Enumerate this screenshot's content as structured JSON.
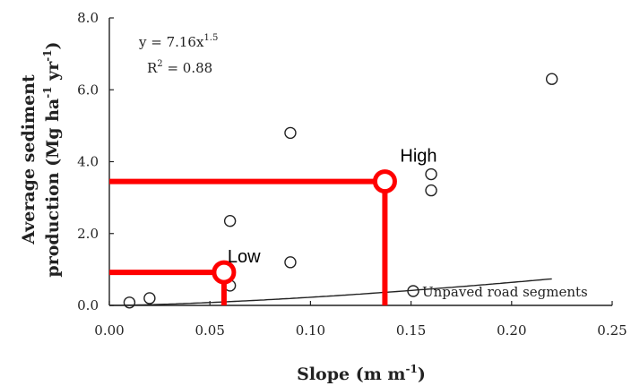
{
  "chart_data": {
    "type": "scatter",
    "title": "",
    "xlabel": "Slope (m m",
    "xlabel_sup": "-1",
    "xlabel_end": ")",
    "ylabel_line1": "Average sediment",
    "ylabel_line2_parts": [
      "production (Mg ha",
      "-1",
      " yr",
      "-1",
      ")"
    ],
    "xlim": [
      0,
      0.25
    ],
    "ylim": [
      0,
      8.0
    ],
    "x_ticks": [
      0.0,
      0.05,
      0.1,
      0.15,
      0.2,
      0.25
    ],
    "x_tick_labels": [
      "0.00",
      "0.05",
      "0.10",
      "0.15",
      "0.20",
      "0.25"
    ],
    "y_ticks": [
      0,
      2,
      4,
      6,
      8
    ],
    "y_tick_labels": [
      "0.0",
      "2.0",
      "4.0",
      "6.0",
      "8.0"
    ],
    "series": [
      {
        "name": "Unpaved road segments",
        "marker": "open-circle",
        "points": [
          {
            "x": 0.01,
            "y": 0.08
          },
          {
            "x": 0.02,
            "y": 0.2
          },
          {
            "x": 0.06,
            "y": 0.55
          },
          {
            "x": 0.06,
            "y": 2.35
          },
          {
            "x": 0.09,
            "y": 1.2
          },
          {
            "x": 0.09,
            "y": 4.8
          },
          {
            "x": 0.16,
            "y": 3.65
          },
          {
            "x": 0.16,
            "y": 3.2
          },
          {
            "x": 0.22,
            "y": 6.3
          }
        ]
      }
    ],
    "fit": {
      "equation": "y = 7.16x",
      "equation_exponent": "1.5",
      "r2_label": "R",
      "r2_sup": "2",
      "r2_value": " = 0.88",
      "coefficient": 7.16,
      "exponent": 1.5
    },
    "legend": {
      "label": "Unpaved road segments",
      "position": "bottom-right"
    },
    "annotations": [
      {
        "text": "Low",
        "x": 0.057,
        "y": 0.92
      },
      {
        "text": "High",
        "x": 0.137,
        "y": 3.45
      }
    ],
    "grid": false,
    "annotation_color": "#ff0000"
  }
}
